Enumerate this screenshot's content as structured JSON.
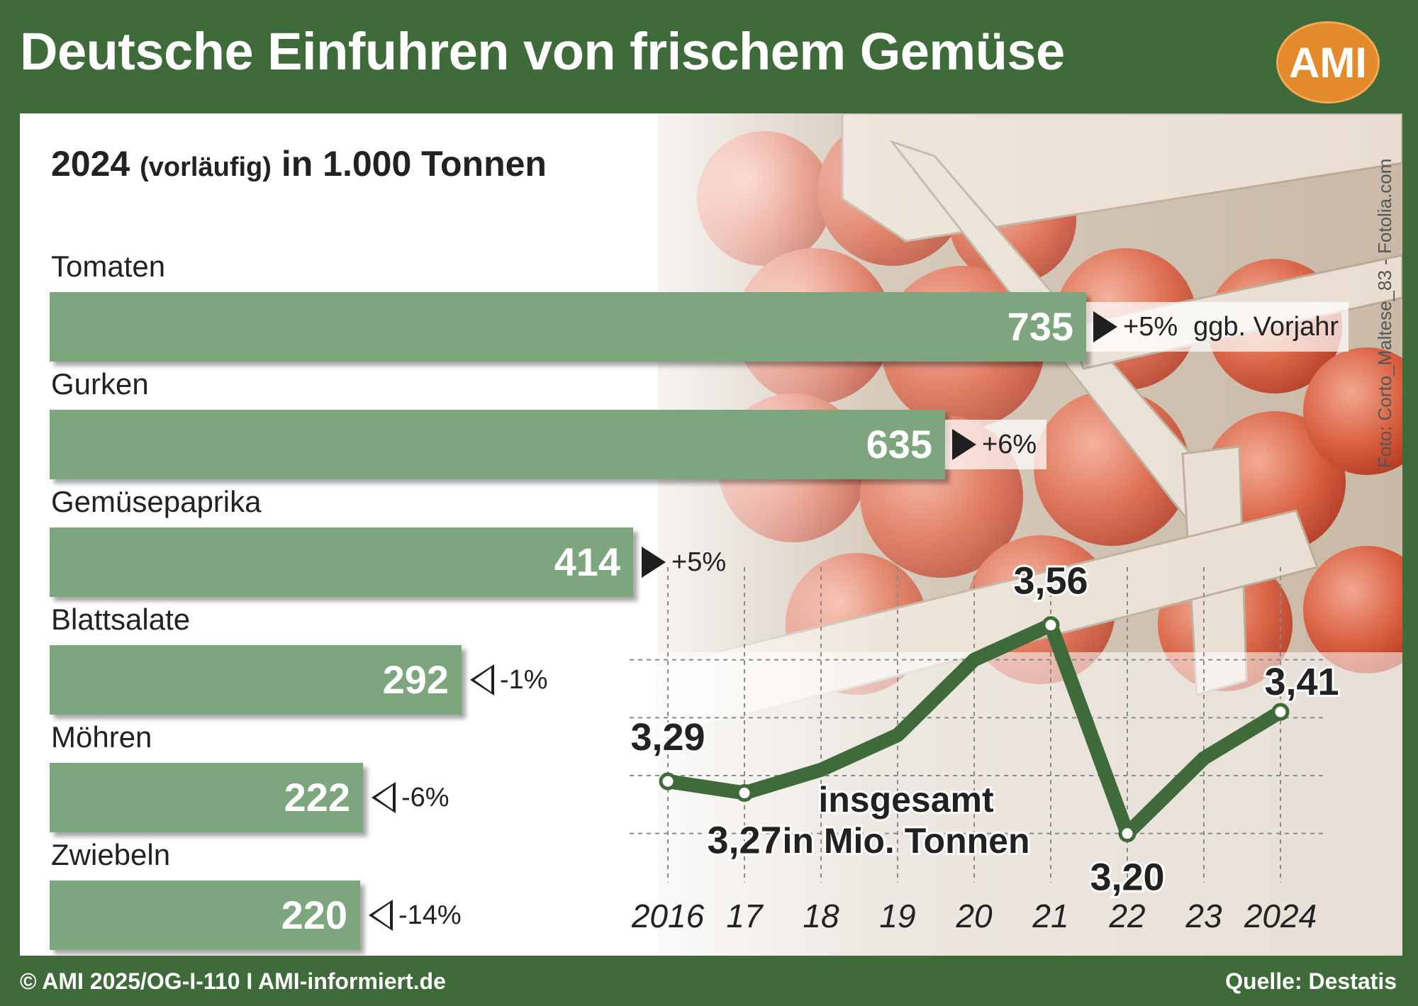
{
  "header": {
    "title": "Deutsche Einfuhren von frischem Gemüse",
    "logo": "AMI"
  },
  "subtitle": {
    "year": "2024",
    "note": "(vorläufig)",
    "unit": "in 1.000 Tonnen"
  },
  "photo_credit": "Foto: Corto_Maltese_83 - Fotolia.com",
  "footer": {
    "left": "© AMI 2025/OG-I-110 I AMI-informiert.de",
    "right": "Quelle: Destatis"
  },
  "colors": {
    "frame": "#3f6a39",
    "bar": "#7da57e",
    "line": "#3f6a39",
    "logo": "#e38a2c"
  },
  "chart_data": [
    {
      "type": "bar",
      "orientation": "horizontal",
      "title": "2024 (vorläufig) in 1.000 Tonnen",
      "categories": [
        "Tomaten",
        "Gurken",
        "Gemüsepaprika",
        "Blattsalate",
        "Möhren",
        "Zwiebeln"
      ],
      "values": [
        735,
        635,
        414,
        292,
        222,
        220
      ],
      "value_labels": [
        "735",
        "635",
        "414",
        "292",
        "222",
        "220"
      ],
      "changes": [
        "+5%",
        "+6%",
        "+5%",
        "-1%",
        "-6%",
        "-14%"
      ],
      "change_direction": [
        "up",
        "up",
        "up",
        "down",
        "down",
        "down"
      ],
      "change_note": "ggb. Vorjahr"
    },
    {
      "type": "line",
      "title": "insgesamt in Mio. Tonnen",
      "x": [
        "2016",
        "17",
        "18",
        "19",
        "20",
        "21",
        "22",
        "23",
        "2024"
      ],
      "y": [
        3.29,
        3.27,
        3.31,
        3.37,
        3.5,
        3.56,
        3.2,
        3.33,
        3.41
      ],
      "labels": [
        {
          "index": 0,
          "text": "3,29"
        },
        {
          "index": 1,
          "text": "3,27"
        },
        {
          "index": 5,
          "text": "3,56"
        },
        {
          "index": 6,
          "text": "3,20"
        },
        {
          "index": 8,
          "text": "3,41"
        }
      ],
      "ylim": [
        3.06,
        3.66
      ],
      "grid": true
    }
  ]
}
